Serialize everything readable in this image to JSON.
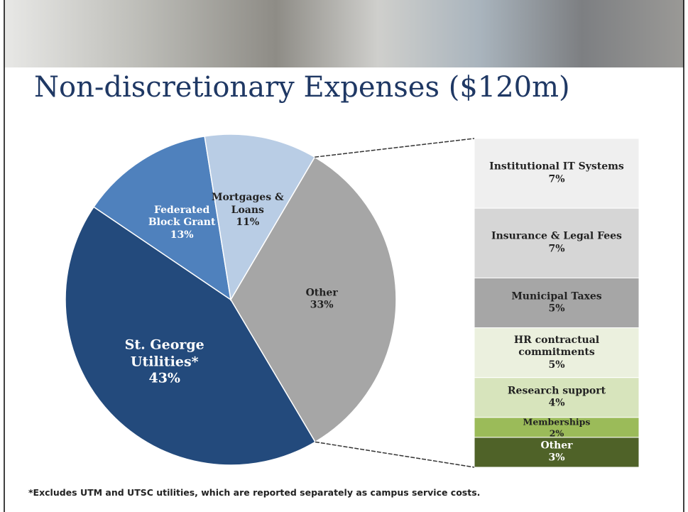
{
  "title": "Non-discretionary Expenses ($120m)",
  "footnote": "*Excludes UTM and UTSC utilities, which are reported separately as campus service costs.",
  "chart_data": [
    {
      "type": "pie",
      "categories": [
        "Other",
        "St. George Utilities*",
        "Federated Block Grant",
        "Mortgages & Loans"
      ],
      "values": [
        33,
        43,
        13,
        11
      ],
      "value_labels": [
        "33%",
        "43%",
        "13%",
        "11%"
      ],
      "colors": [
        "#a6a6a6",
        "#234a7c",
        "#4f81bd",
        "#b9cde5"
      ]
    },
    {
      "type": "stacked-bar",
      "categories": [
        "Institutional IT Systems",
        "Insurance & Legal Fees",
        "Municipal Taxes",
        "HR contractual commitments",
        "Research support",
        "Memberships",
        "Other"
      ],
      "values": [
        7,
        7,
        5,
        5,
        4,
        2,
        3
      ],
      "value_labels": [
        "7%",
        "7%",
        "5%",
        "5%",
        "4%",
        "2%",
        "3%"
      ],
      "colors": [
        "#efefef",
        "#d6d6d6",
        "#a6a6a6",
        "#ebf0de",
        "#d7e4bc",
        "#9bbb59",
        "#4f6228"
      ]
    }
  ]
}
